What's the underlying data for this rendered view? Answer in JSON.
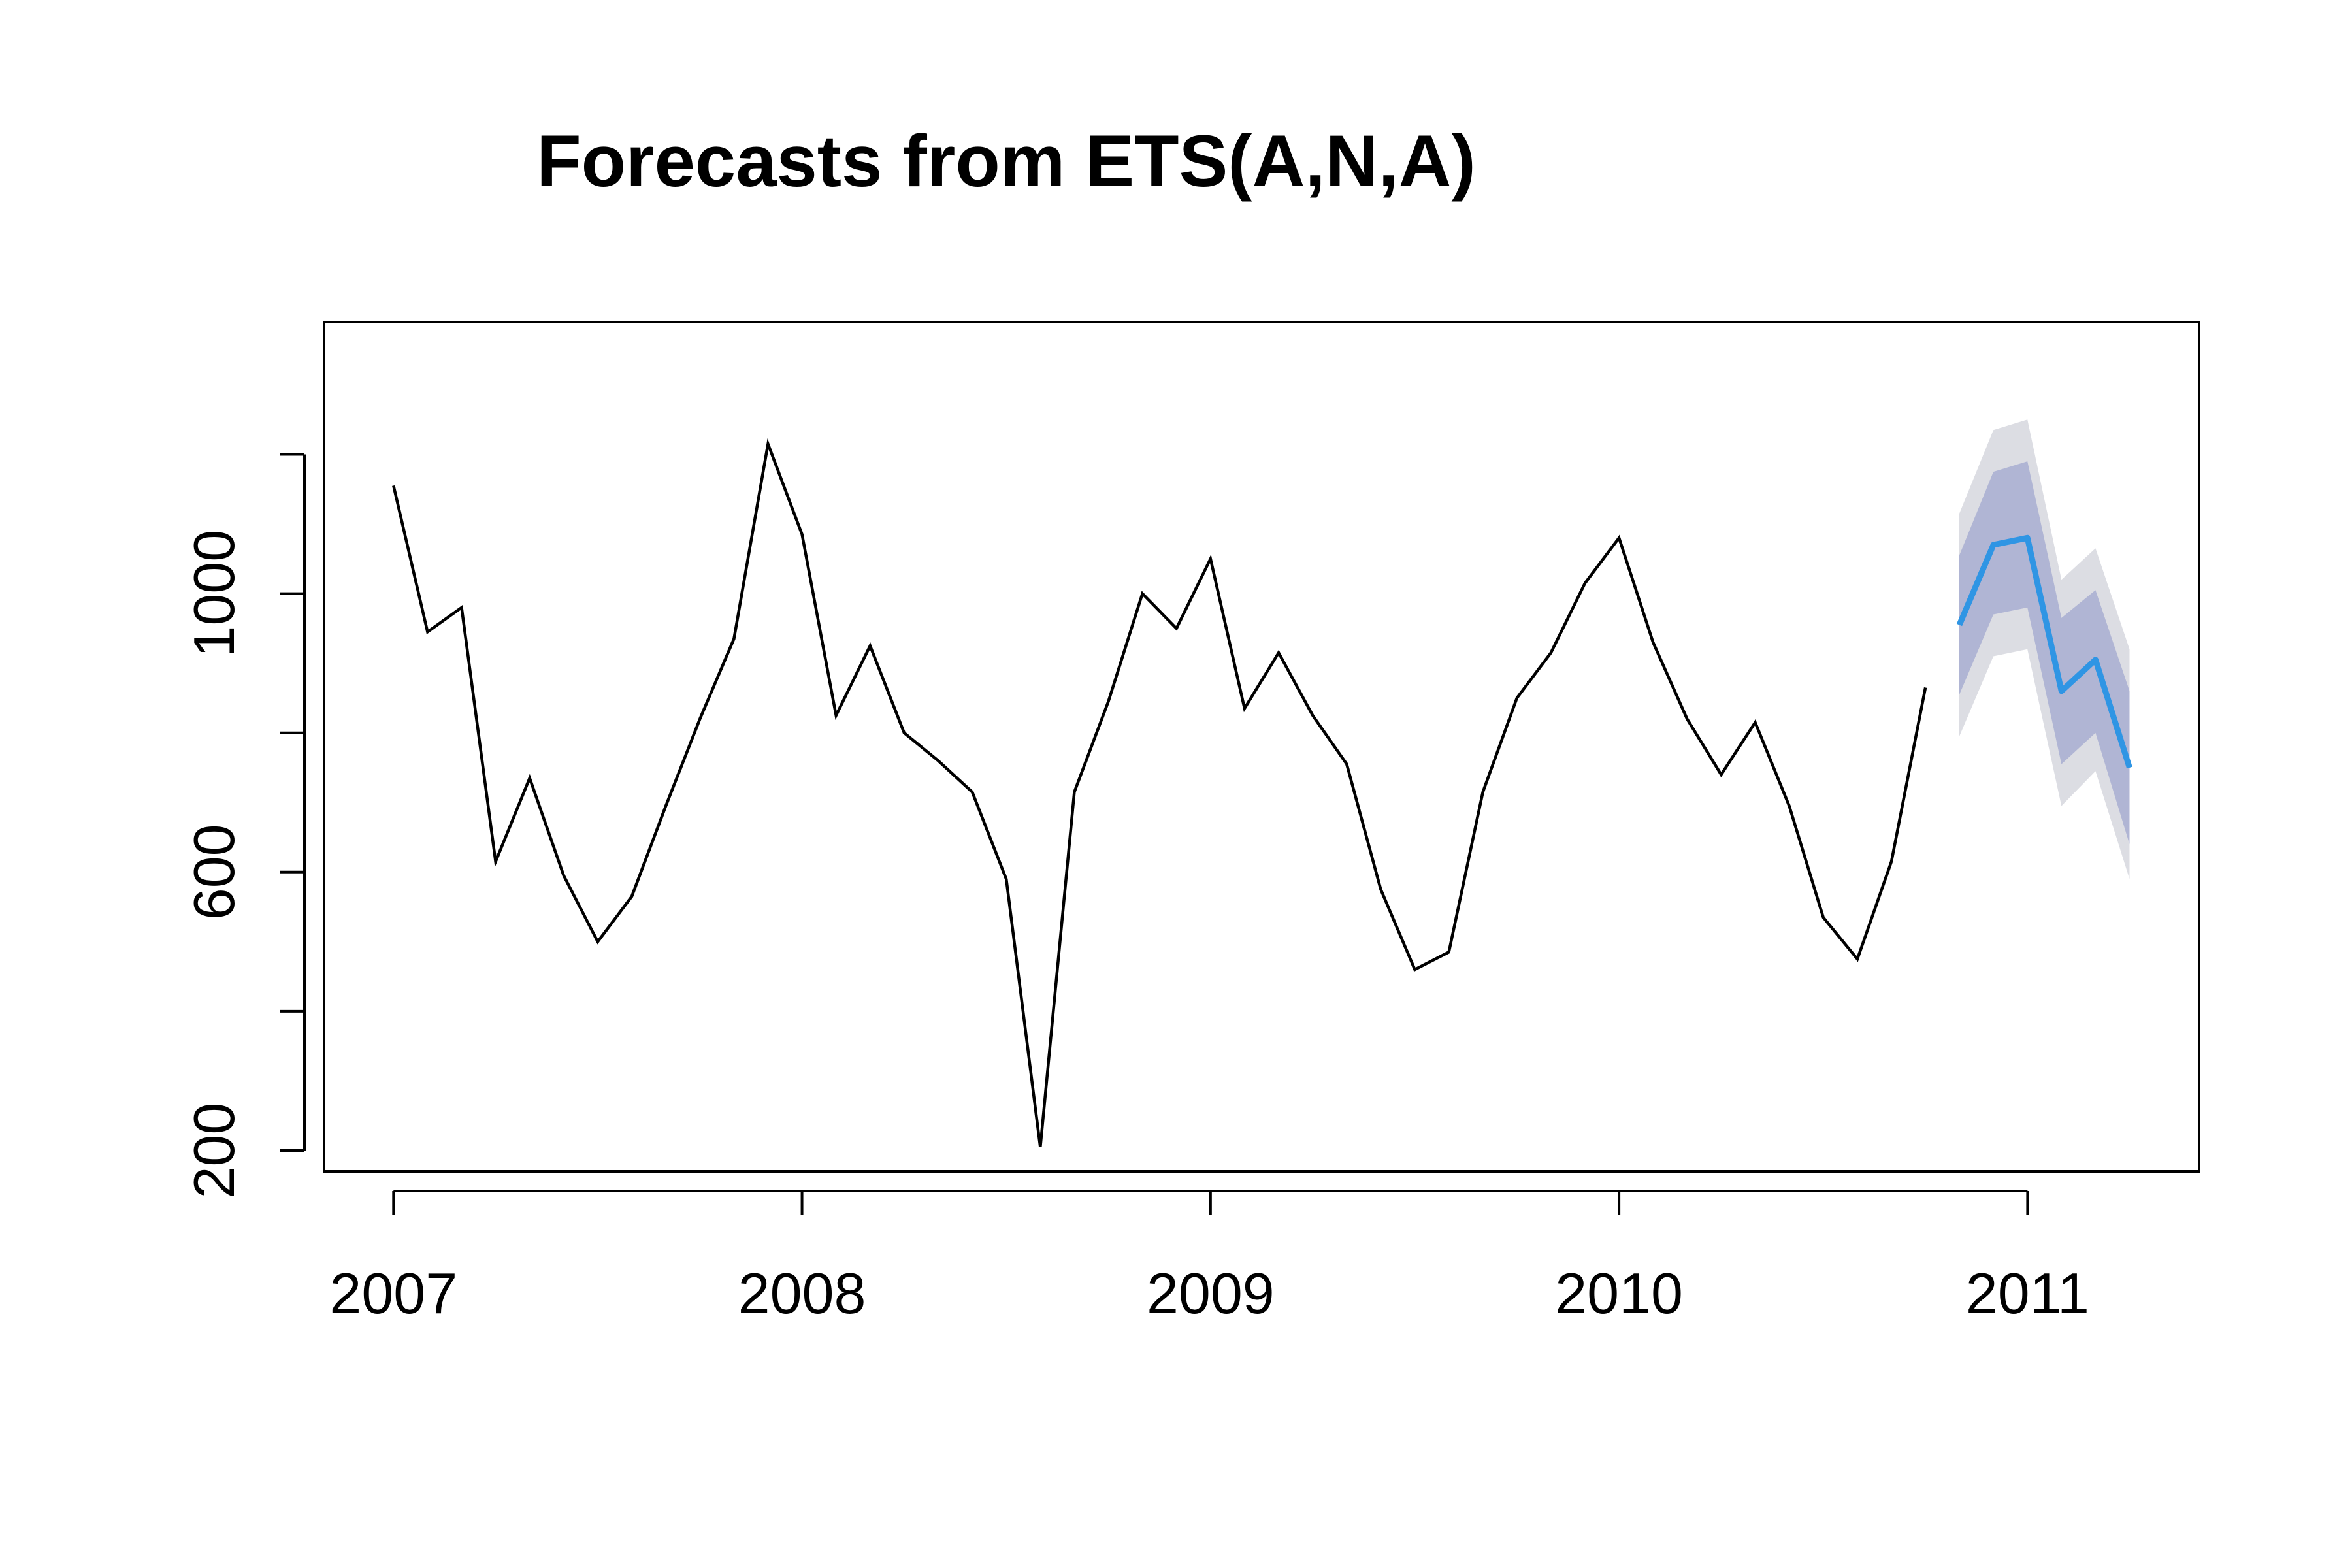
{
  "chart_data": {
    "type": "line",
    "title": "Forecasts from ETS(A,N,A)",
    "xlabel": "",
    "ylabel": "",
    "xlim": [
      2006.83,
      2011.42
    ],
    "ylim": [
      170,
      1390
    ],
    "x_ticks": [
      2007,
      2008,
      2009,
      2010,
      2011
    ],
    "x_tick_labels": [
      "2007",
      "2008",
      "2009",
      "2010",
      "2011"
    ],
    "y_ticks": [
      200,
      400,
      600,
      800,
      1000,
      1200
    ],
    "y_tick_labels": [
      "200",
      "",
      "600",
      "",
      "1000",
      ""
    ],
    "grid": false,
    "legend": "none",
    "colors": {
      "history": "#000000",
      "forecast": "#2f95e4",
      "band80": "#b0b5d4",
      "band95": "#dcdde3"
    },
    "history": {
      "x_start": 2007.0,
      "step_months": 1,
      "values": [
        1155,
        945,
        980,
        615,
        735,
        595,
        500,
        565,
        695,
        820,
        935,
        1215,
        1085,
        825,
        925,
        800,
        760,
        715,
        590,
        205,
        715,
        845,
        1000,
        950,
        1050,
        835,
        915,
        825,
        755,
        575,
        460,
        485,
        715,
        850,
        915,
        1015,
        1080,
        930,
        820,
        740,
        815,
        695,
        535,
        475,
        615,
        865
      ]
    },
    "forecast": {
      "x_start": 2010.833,
      "step_months": 1,
      "mean": [
        955,
        1070,
        1080,
        860,
        905,
        750
      ],
      "lo80": [
        855,
        970,
        980,
        755,
        800,
        640
      ],
      "hi80": [
        1055,
        1175,
        1190,
        965,
        1005,
        860
      ],
      "lo95": [
        795,
        910,
        920,
        695,
        745,
        590
      ],
      "hi95": [
        1115,
        1235,
        1250,
        1020,
        1065,
        920
      ]
    }
  }
}
